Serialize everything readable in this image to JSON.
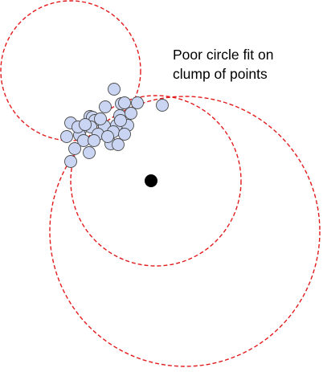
{
  "caption": {
    "line1": "Poor circle fit on",
    "line2": "clump of points"
  },
  "colors": {
    "circle_stroke": "#e31a1c",
    "point_fill": "#c9d5f2",
    "point_stroke": "#4a4a4a",
    "center_fill": "#000000"
  },
  "circles": [
    {
      "name": "fit-circle-upper-left"
    },
    {
      "name": "fit-circle-inner"
    },
    {
      "name": "fit-circle-outer"
    }
  ],
  "points_count": 34
}
